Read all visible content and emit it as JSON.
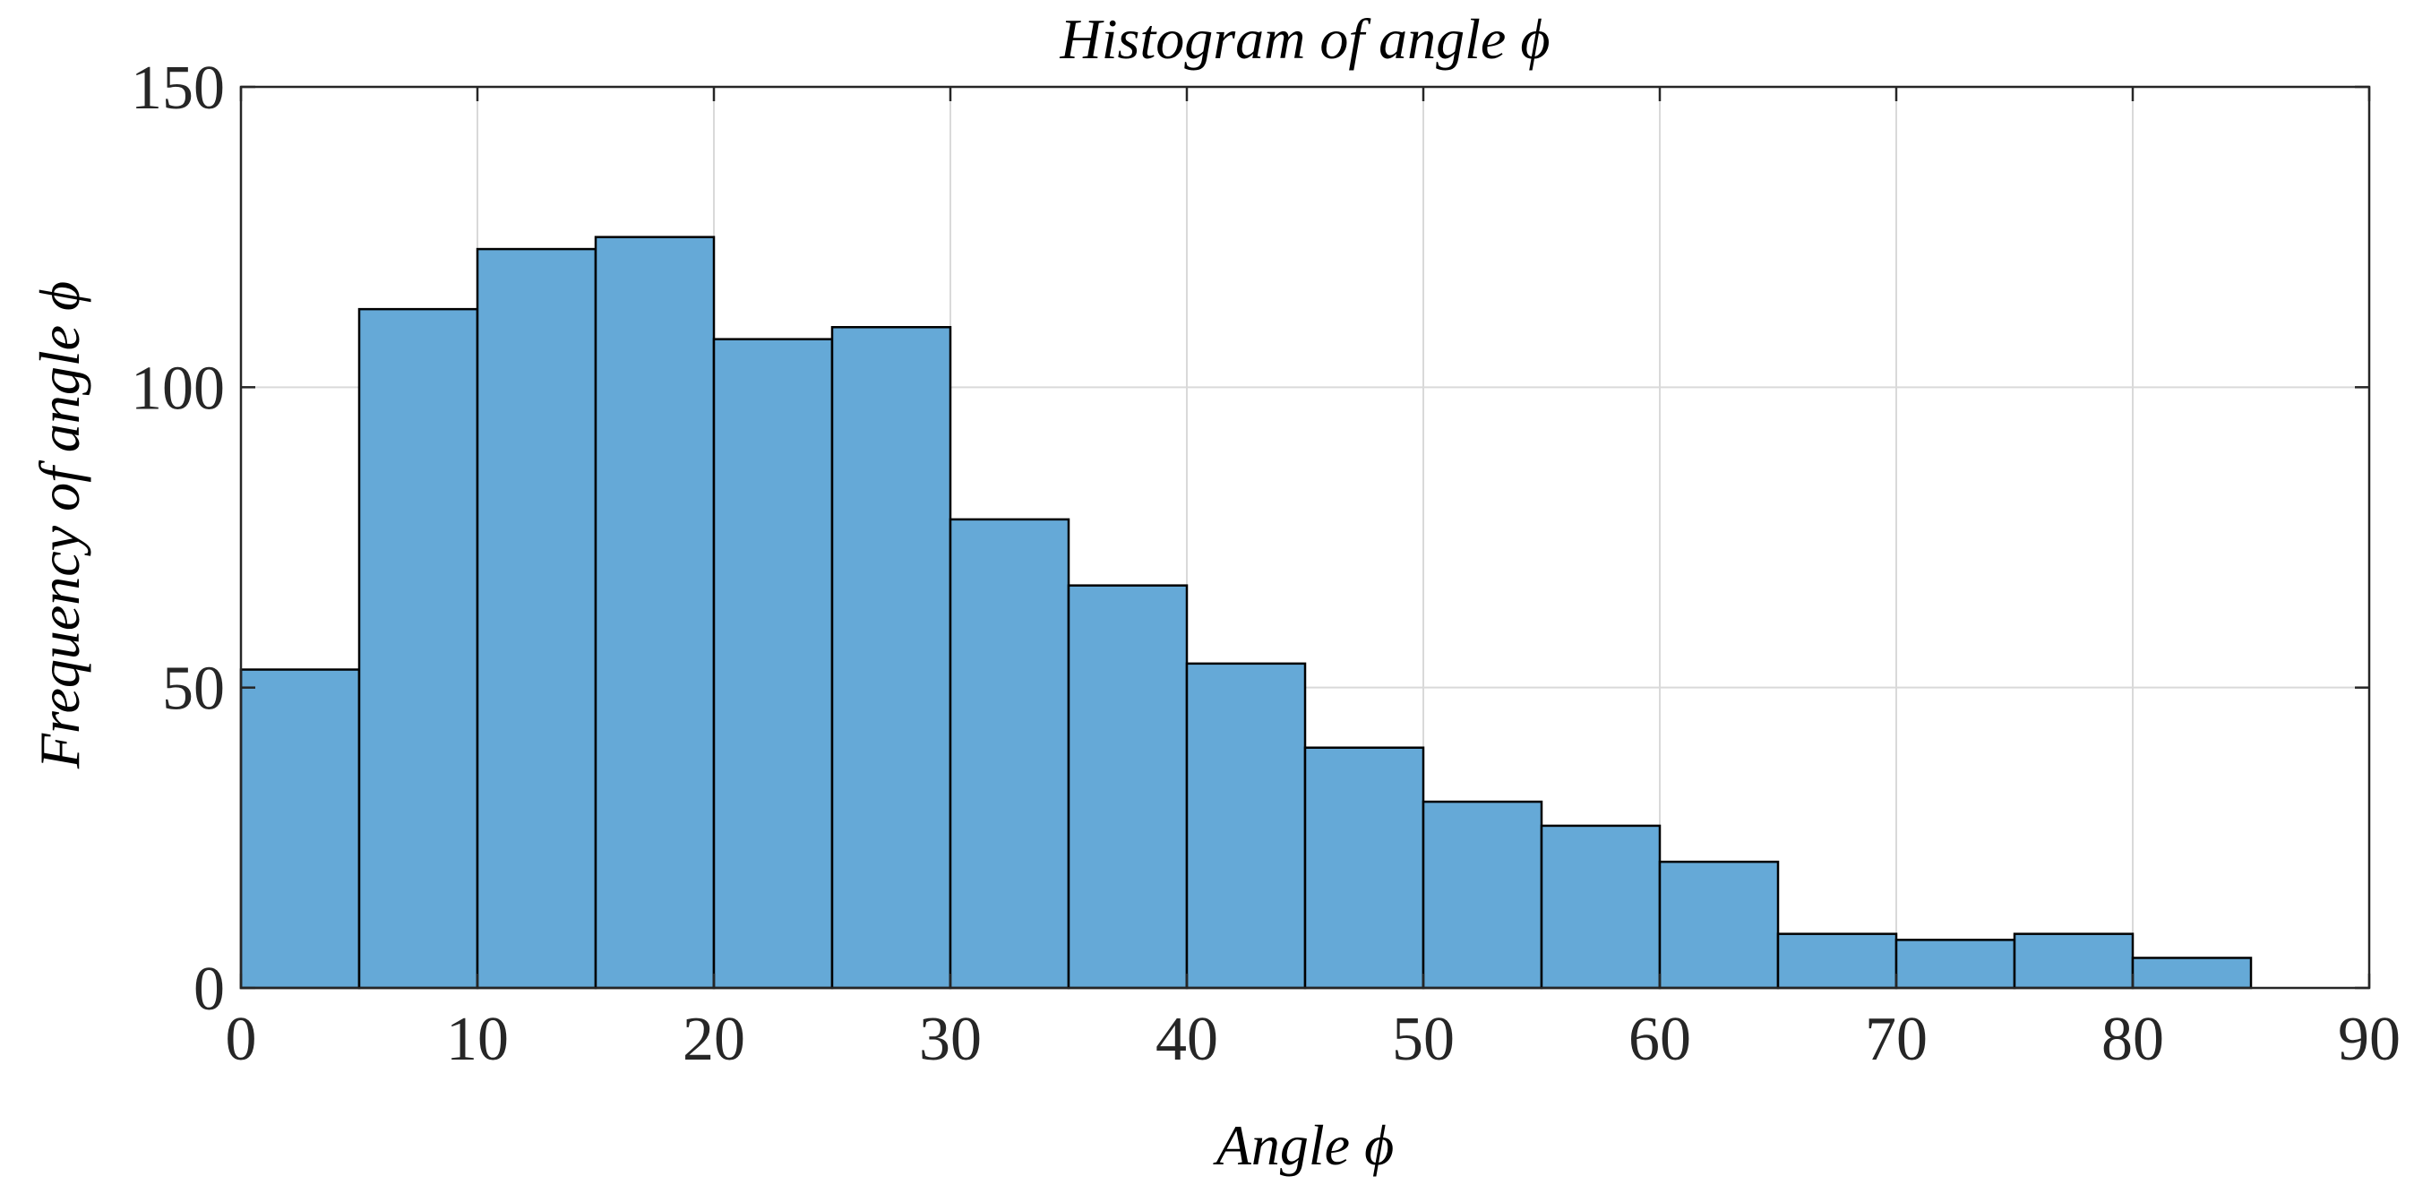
{
  "chart_data": {
    "type": "bar",
    "histogram": true,
    "title": "Histogram of angle ϕ",
    "xlabel": "Angle ϕ",
    "ylabel": "Frequency of angle ϕ",
    "bin_edges": [
      0,
      5,
      10,
      15,
      20,
      25,
      30,
      35,
      40,
      45,
      50,
      55,
      60,
      65,
      70,
      75,
      80,
      85
    ],
    "values": [
      53,
      113,
      123,
      125,
      108,
      110,
      78,
      67,
      54,
      40,
      31,
      27,
      21,
      9,
      8,
      9,
      5
    ],
    "xlim": [
      0,
      90
    ],
    "ylim": [
      0,
      150
    ],
    "xticks": [
      0,
      10,
      20,
      30,
      40,
      50,
      60,
      70,
      80,
      90
    ],
    "yticks": [
      0,
      50,
      100,
      150
    ],
    "xtick_labels": [
      "0",
      "10",
      "20",
      "30",
      "40",
      "50",
      "60",
      "70",
      "80",
      "90"
    ],
    "ytick_labels": [
      "0",
      "50",
      "100",
      "150"
    ],
    "grid": true,
    "legend": "none",
    "colors": {
      "bar_fill": "#65a9d7",
      "bar_edge": "#000000",
      "grid": "#d9d9d9",
      "axis": "#262626"
    }
  }
}
